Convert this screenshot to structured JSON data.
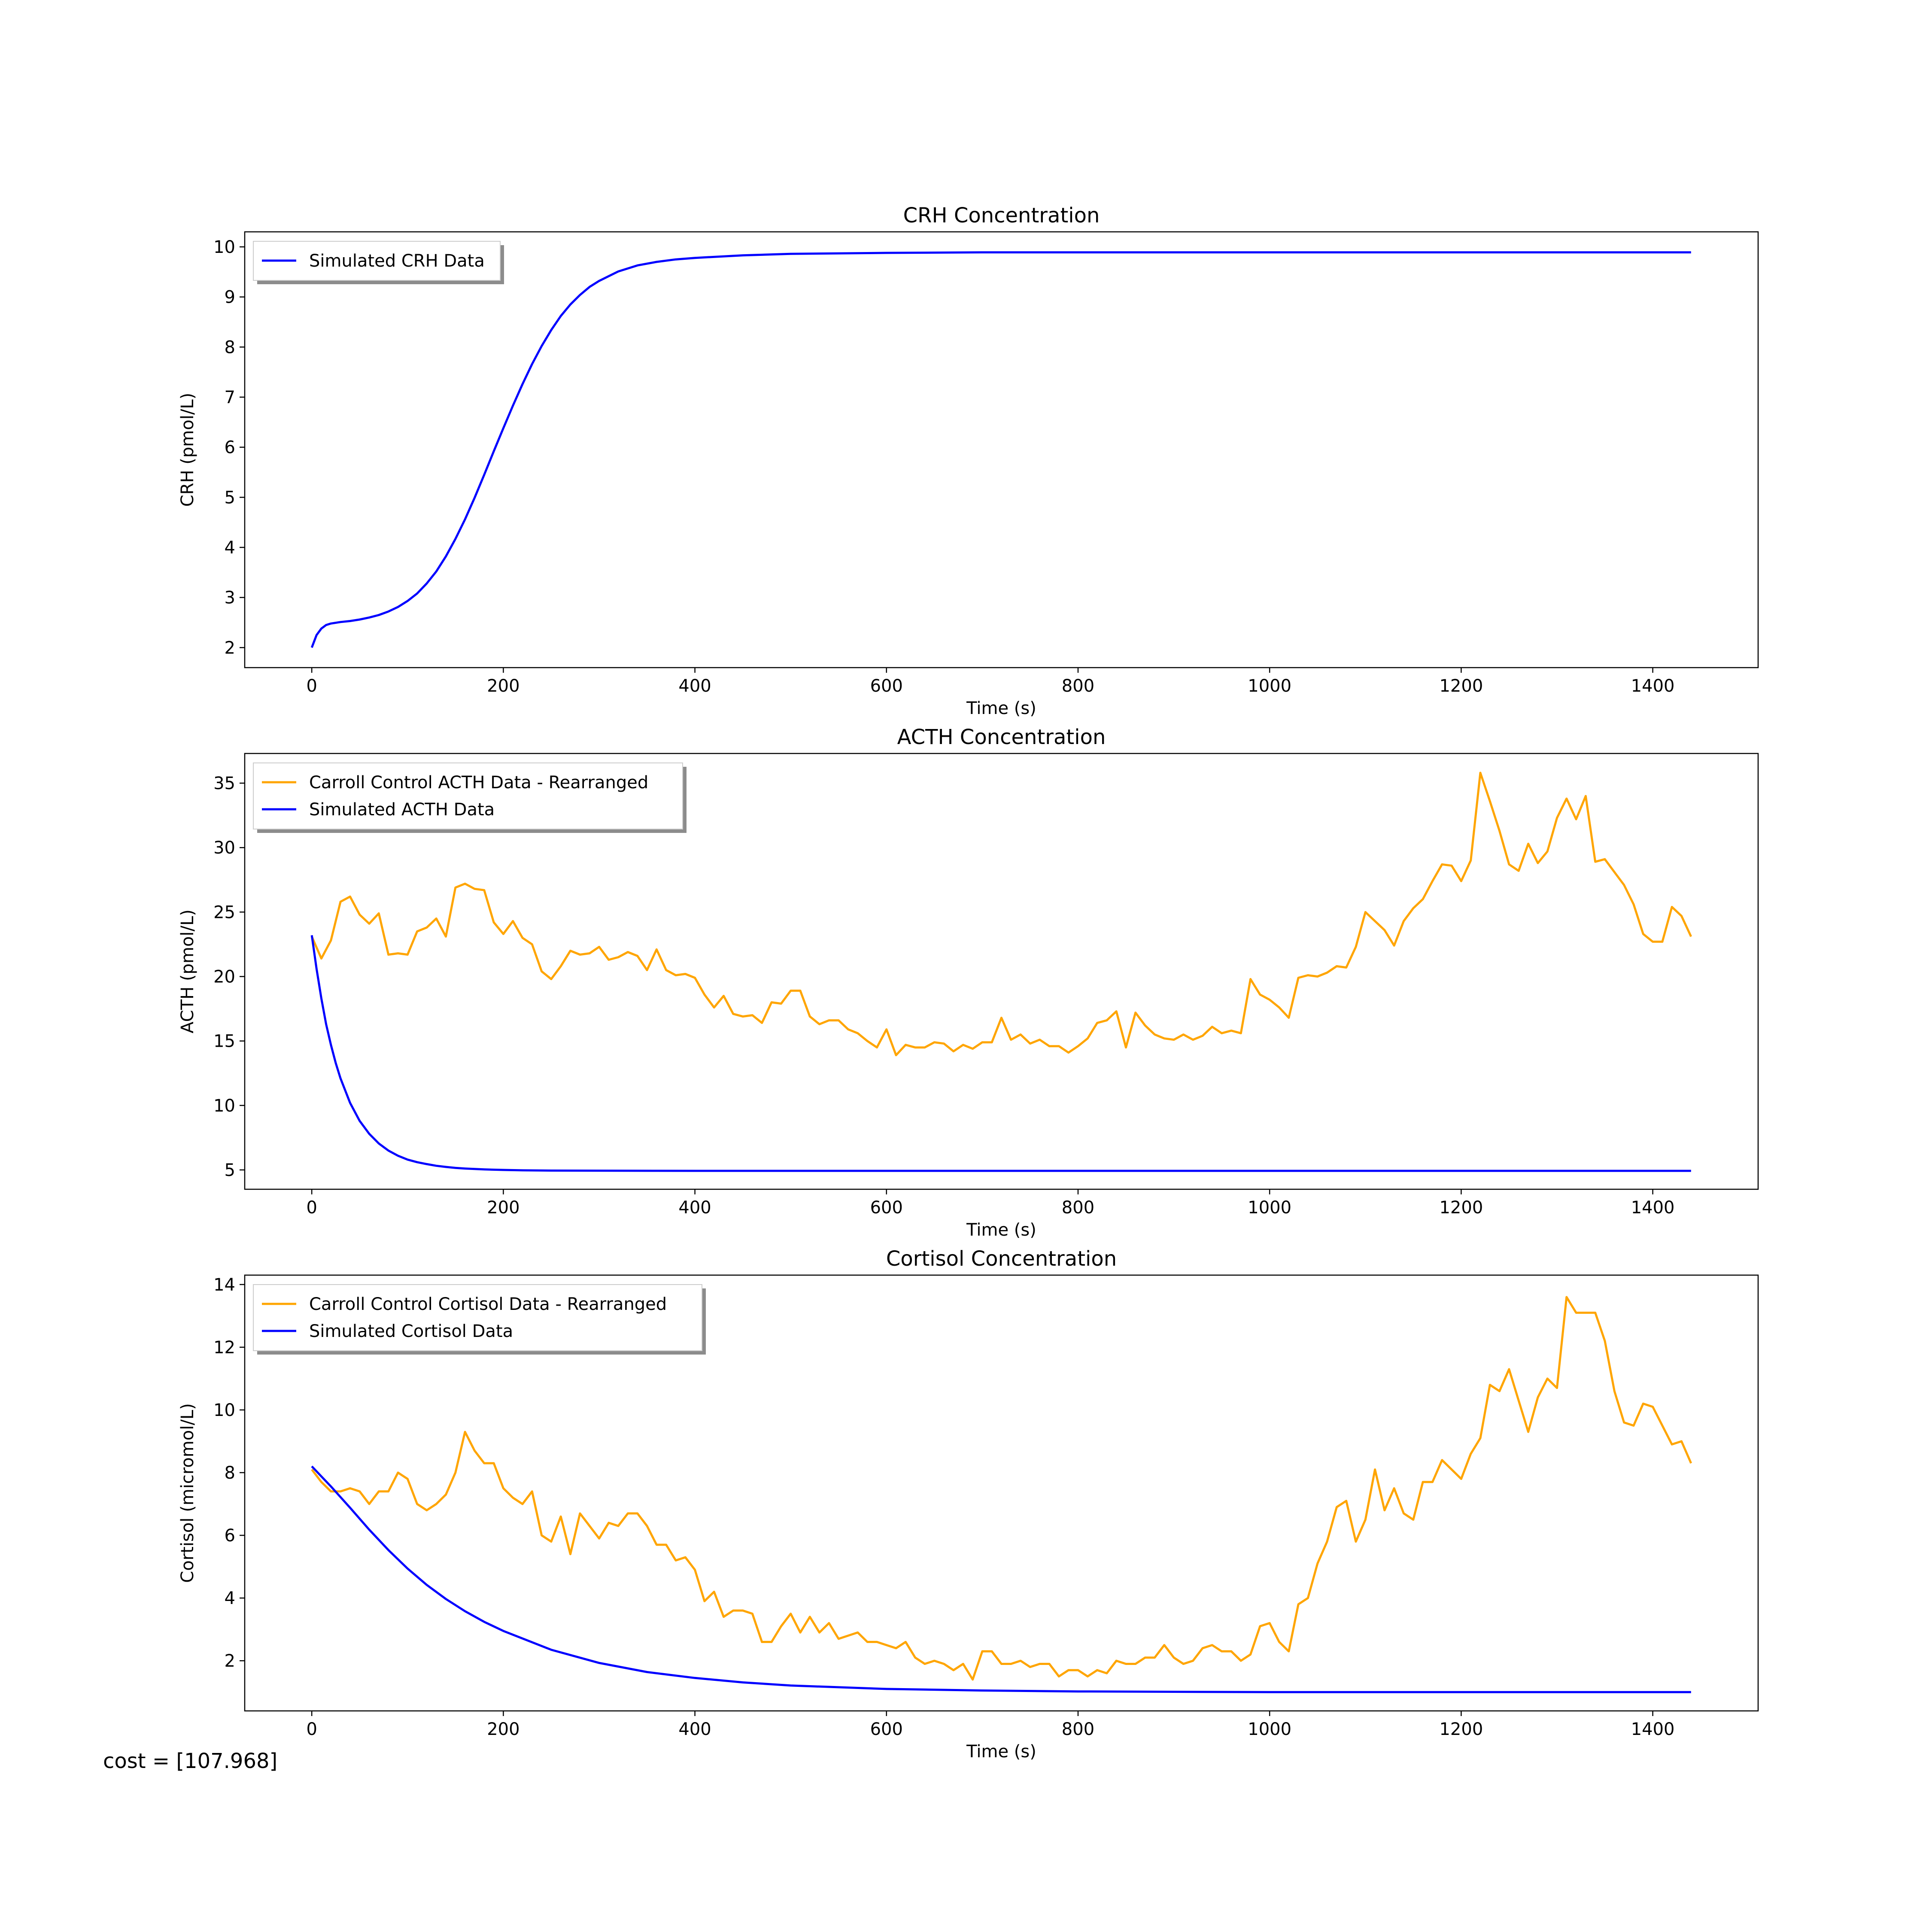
{
  "figure": {
    "cost_text": "cost = [107.968]"
  },
  "chart_data": [
    {
      "type": "line",
      "title": "CRH Concentration",
      "xlabel": "Time (s)",
      "ylabel": "CRH (pmol/L)",
      "xlim": [
        -70,
        1510
      ],
      "ylim": [
        1.6,
        10.3
      ],
      "xticks": [
        0,
        200,
        400,
        600,
        800,
        1000,
        1200,
        1400
      ],
      "yticks": [
        2,
        3,
        4,
        5,
        6,
        7,
        8,
        9,
        10
      ],
      "legend_position": "upper-left",
      "series": [
        {
          "name": "Simulated CRH Data",
          "color": "#0000ff",
          "x": [
            0,
            5,
            10,
            15,
            20,
            30,
            40,
            50,
            60,
            70,
            80,
            90,
            100,
            110,
            120,
            130,
            140,
            150,
            160,
            170,
            180,
            190,
            200,
            210,
            220,
            230,
            240,
            250,
            260,
            270,
            280,
            290,
            300,
            320,
            340,
            360,
            380,
            400,
            450,
            500,
            600,
            700,
            800,
            1000,
            1200,
            1440
          ],
          "y": [
            2.0,
            2.25,
            2.38,
            2.45,
            2.48,
            2.51,
            2.53,
            2.56,
            2.6,
            2.65,
            2.72,
            2.81,
            2.93,
            3.08,
            3.28,
            3.52,
            3.82,
            4.17,
            4.56,
            4.99,
            5.45,
            5.92,
            6.38,
            6.83,
            7.26,
            7.66,
            8.02,
            8.34,
            8.62,
            8.85,
            9.04,
            9.2,
            9.32,
            9.51,
            9.63,
            9.7,
            9.75,
            9.78,
            9.83,
            9.86,
            9.88,
            9.89,
            9.89,
            9.89,
            9.89,
            9.89
          ]
        }
      ]
    },
    {
      "type": "line",
      "title": "ACTH Concentration",
      "xlabel": "Time (s)",
      "ylabel": "ACTH (pmol/L)",
      "xlim": [
        -70,
        1510
      ],
      "ylim": [
        3.5,
        37.3
      ],
      "xticks": [
        0,
        200,
        400,
        600,
        800,
        1000,
        1200,
        1400
      ],
      "yticks": [
        5,
        10,
        15,
        20,
        25,
        30,
        35
      ],
      "legend_position": "upper-left",
      "series": [
        {
          "name": "Carroll Control ACTH Data - Rearranged",
          "color": "#ffa500",
          "x": [
            0,
            10,
            20,
            30,
            40,
            50,
            60,
            70,
            80,
            90,
            100,
            110,
            120,
            130,
            140,
            150,
            160,
            170,
            180,
            190,
            200,
            210,
            220,
            230,
            240,
            250,
            260,
            270,
            280,
            290,
            300,
            310,
            320,
            330,
            340,
            350,
            360,
            370,
            380,
            390,
            400,
            410,
            420,
            430,
            440,
            450,
            460,
            470,
            480,
            490,
            500,
            510,
            520,
            530,
            540,
            550,
            560,
            570,
            580,
            590,
            600,
            610,
            620,
            630,
            640,
            650,
            660,
            670,
            680,
            690,
            700,
            710,
            720,
            730,
            740,
            750,
            760,
            770,
            780,
            790,
            800,
            810,
            820,
            830,
            840,
            850,
            860,
            870,
            880,
            890,
            900,
            910,
            920,
            930,
            940,
            950,
            960,
            970,
            980,
            990,
            1000,
            1010,
            1020,
            1030,
            1040,
            1050,
            1060,
            1070,
            1080,
            1090,
            1100,
            1110,
            1120,
            1130,
            1140,
            1150,
            1160,
            1170,
            1180,
            1190,
            1200,
            1210,
            1220,
            1230,
            1240,
            1250,
            1260,
            1270,
            1280,
            1290,
            1300,
            1310,
            1320,
            1330,
            1340,
            1350,
            1360,
            1370,
            1380,
            1390,
            1400,
            1410,
            1420,
            1430,
            1440
          ],
          "y": [
            23.1,
            21.4,
            22.8,
            25.8,
            26.2,
            24.8,
            24.1,
            24.9,
            21.7,
            21.8,
            21.7,
            23.5,
            23.8,
            24.5,
            23.1,
            26.9,
            27.2,
            26.8,
            26.7,
            24.2,
            23.3,
            24.3,
            23.0,
            22.5,
            20.4,
            19.8,
            20.8,
            22.0,
            21.7,
            21.8,
            22.3,
            21.3,
            21.5,
            21.9,
            21.6,
            20.5,
            22.1,
            20.5,
            20.1,
            20.2,
            19.9,
            18.6,
            17.6,
            18.5,
            17.1,
            16.9,
            17.0,
            16.4,
            18.0,
            17.9,
            18.9,
            18.9,
            16.9,
            16.3,
            16.6,
            16.6,
            15.9,
            15.6,
            15.0,
            14.5,
            15.9,
            13.9,
            14.7,
            14.5,
            14.5,
            14.9,
            14.8,
            14.2,
            14.7,
            14.4,
            14.9,
            14.9,
            16.8,
            15.1,
            15.5,
            14.8,
            15.1,
            14.6,
            14.6,
            14.1,
            14.6,
            15.2,
            16.4,
            16.6,
            17.3,
            14.5,
            17.2,
            16.2,
            15.5,
            15.2,
            15.1,
            15.5,
            15.1,
            15.4,
            16.1,
            15.6,
            15.8,
            15.6,
            19.8,
            18.6,
            18.2,
            17.6,
            16.8,
            19.9,
            20.1,
            20.0,
            20.3,
            20.8,
            20.7,
            22.3,
            25.0,
            24.3,
            23.6,
            22.4,
            24.3,
            25.3,
            26.0,
            27.4,
            28.7,
            28.6,
            27.4,
            29.0,
            35.8,
            33.6,
            31.3,
            28.7,
            28.2,
            30.3,
            28.8,
            29.7,
            32.3,
            33.8,
            32.2,
            34.0,
            28.9,
            29.1,
            28.1,
            27.1,
            25.6,
            23.3,
            22.7,
            22.7,
            25.4,
            24.7,
            23.1
          ]
        },
        {
          "name": "Simulated ACTH Data",
          "color": "#0000ff",
          "x": [
            0,
            5,
            10,
            15,
            20,
            25,
            30,
            40,
            50,
            60,
            70,
            80,
            90,
            100,
            110,
            120,
            130,
            140,
            150,
            160,
            180,
            200,
            220,
            250,
            300,
            400,
            500,
            700,
            1000,
            1440
          ],
          "y": [
            23.2,
            20.6,
            18.3,
            16.3,
            14.7,
            13.3,
            12.1,
            10.2,
            8.8,
            7.8,
            7.05,
            6.5,
            6.1,
            5.8,
            5.6,
            5.45,
            5.32,
            5.23,
            5.16,
            5.11,
            5.04,
            5.0,
            4.97,
            4.95,
            4.94,
            4.93,
            4.93,
            4.93,
            4.93,
            4.93
          ]
        }
      ]
    },
    {
      "type": "line",
      "title": "Cortisol Concentration",
      "xlabel": "Time (s)",
      "ylabel": "Cortisol (micromol/L)",
      "xlim": [
        -70,
        1510
      ],
      "ylim": [
        0.4,
        14.3
      ],
      "xticks": [
        0,
        200,
        400,
        600,
        800,
        1000,
        1200,
        1400
      ],
      "yticks": [
        2,
        4,
        6,
        8,
        10,
        12,
        14
      ],
      "legend_position": "upper-left",
      "series": [
        {
          "name": "Carroll Control Cortisol Data - Rearranged",
          "color": "#ffa500",
          "x": [
            0,
            10,
            20,
            30,
            40,
            50,
            60,
            70,
            80,
            90,
            100,
            110,
            120,
            130,
            140,
            150,
            160,
            170,
            180,
            190,
            200,
            210,
            220,
            230,
            240,
            250,
            260,
            270,
            280,
            290,
            300,
            310,
            320,
            330,
            340,
            350,
            360,
            370,
            380,
            390,
            400,
            410,
            420,
            430,
            440,
            450,
            460,
            470,
            480,
            490,
            500,
            510,
            520,
            530,
            540,
            550,
            560,
            570,
            580,
            590,
            600,
            610,
            620,
            630,
            640,
            650,
            660,
            670,
            680,
            690,
            700,
            710,
            720,
            730,
            740,
            750,
            760,
            770,
            780,
            790,
            800,
            810,
            820,
            830,
            840,
            850,
            860,
            870,
            880,
            890,
            900,
            910,
            920,
            930,
            940,
            950,
            960,
            970,
            980,
            990,
            1000,
            1010,
            1020,
            1030,
            1040,
            1050,
            1060,
            1070,
            1080,
            1090,
            1100,
            1110,
            1120,
            1130,
            1140,
            1150,
            1160,
            1170,
            1180,
            1190,
            1200,
            1210,
            1220,
            1230,
            1240,
            1250,
            1260,
            1270,
            1280,
            1290,
            1300,
            1310,
            1320,
            1330,
            1340,
            1350,
            1360,
            1370,
            1380,
            1390,
            1400,
            1410,
            1420,
            1430,
            1440
          ],
          "y": [
            8.1,
            7.7,
            7.4,
            7.4,
            7.5,
            7.4,
            7.0,
            7.4,
            7.4,
            8.0,
            7.8,
            7.0,
            6.8,
            7.0,
            7.3,
            8.0,
            9.3,
            8.7,
            8.3,
            8.3,
            7.5,
            7.2,
            7.0,
            7.4,
            6.0,
            5.8,
            6.6,
            5.4,
            6.7,
            6.3,
            5.9,
            6.4,
            6.3,
            6.7,
            6.7,
            6.3,
            5.7,
            5.7,
            5.2,
            5.3,
            4.9,
            3.9,
            4.2,
            3.4,
            3.6,
            3.6,
            3.5,
            2.6,
            2.6,
            3.1,
            3.5,
            2.9,
            3.4,
            2.9,
            3.2,
            2.7,
            2.8,
            2.9,
            2.6,
            2.6,
            2.5,
            2.4,
            2.6,
            2.1,
            1.9,
            2.0,
            1.9,
            1.7,
            1.9,
            1.4,
            2.3,
            2.3,
            1.9,
            1.9,
            2.0,
            1.8,
            1.9,
            1.9,
            1.5,
            1.7,
            1.7,
            1.5,
            1.7,
            1.6,
            2.0,
            1.9,
            1.9,
            2.1,
            2.1,
            2.5,
            2.1,
            1.9,
            2.0,
            2.4,
            2.5,
            2.3,
            2.3,
            2.0,
            2.2,
            3.1,
            3.2,
            2.6,
            2.3,
            3.8,
            4.0,
            5.1,
            5.8,
            6.9,
            7.1,
            5.8,
            6.5,
            8.1,
            6.8,
            7.5,
            6.7,
            6.5,
            7.7,
            7.7,
            8.4,
            8.1,
            7.8,
            8.6,
            9.1,
            10.8,
            10.6,
            11.3,
            10.3,
            9.3,
            10.4,
            11.0,
            10.7,
            13.6,
            13.1,
            13.1,
            13.1,
            12.2,
            10.6,
            9.6,
            9.5,
            10.2,
            10.1,
            9.5,
            8.9,
            9.0,
            8.3
          ]
        },
        {
          "name": "Simulated Cortisol Data",
          "color": "#0000ff",
          "x": [
            0,
            10,
            20,
            30,
            40,
            50,
            60,
            80,
            100,
            120,
            140,
            160,
            180,
            200,
            250,
            300,
            350,
            400,
            450,
            500,
            600,
            700,
            800,
            900,
            1000,
            1200,
            1440
          ],
          "y": [
            8.2,
            7.88,
            7.56,
            7.22,
            6.88,
            6.53,
            6.18,
            5.53,
            4.94,
            4.42,
            3.97,
            3.58,
            3.24,
            2.95,
            2.35,
            1.93,
            1.64,
            1.45,
            1.31,
            1.21,
            1.1,
            1.05,
            1.02,
            1.01,
            1.0,
            1.0,
            1.0
          ]
        }
      ]
    }
  ]
}
